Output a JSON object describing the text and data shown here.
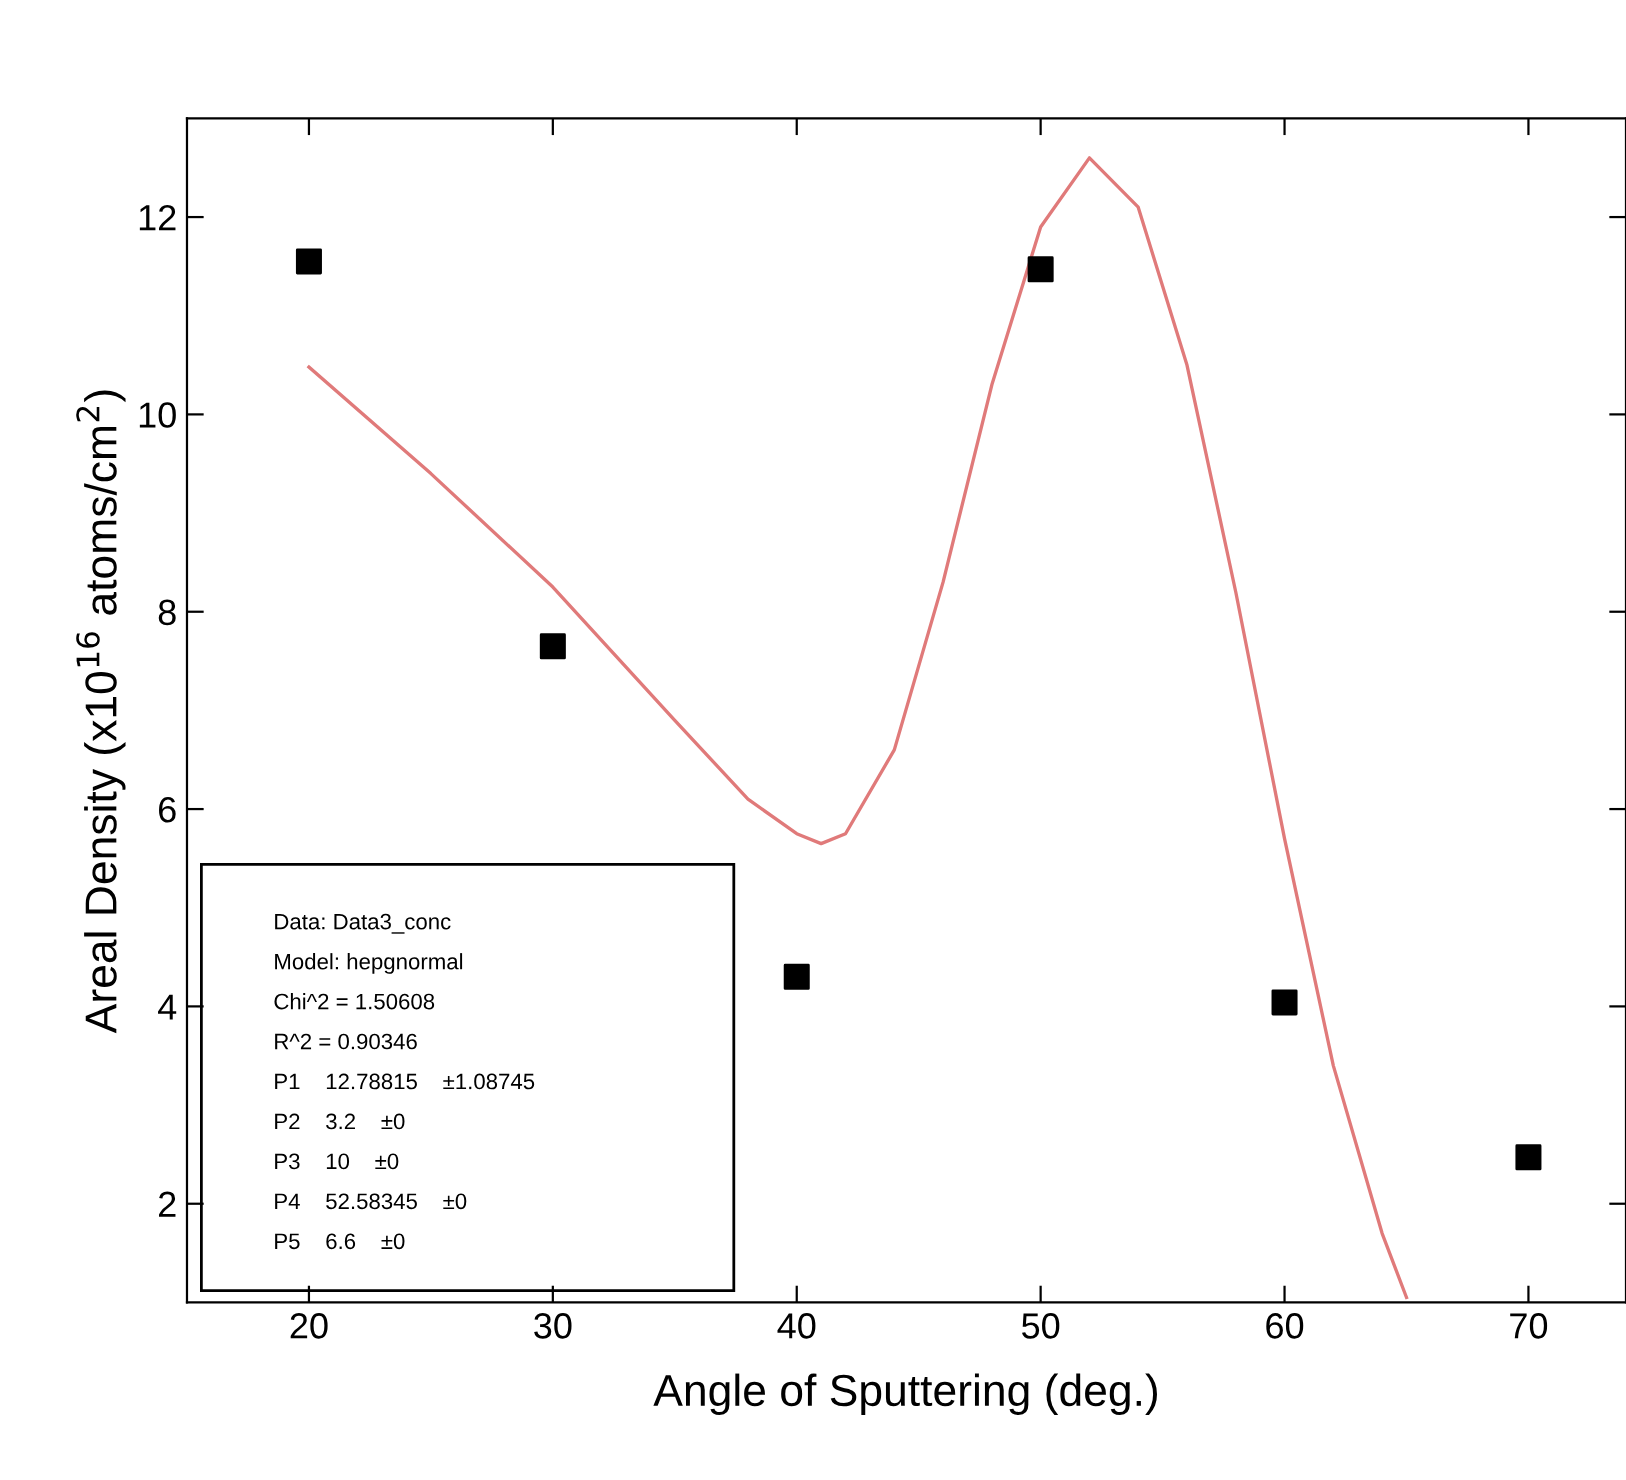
{
  "chart_data": {
    "type": "scatter",
    "xlabel": "Angle of Sputtering (deg.)",
    "ylabel": "Areal Density (x10$^{16}$ atoms/cm$^{2}$)",
    "xlim": [
      15,
      74
    ],
    "xticks": [
      20,
      30,
      40,
      50,
      60,
      70
    ],
    "ylim": [
      1,
      13
    ],
    "yticks": [
      2,
      4,
      6,
      8,
      10,
      12
    ],
    "grid": false,
    "legend": false,
    "marker": "square",
    "series": [
      {
        "color": "#000000",
        "x": [
          20,
          30,
          40,
          50,
          60,
          70
        ],
        "values": [
          11.55,
          7.65,
          4.3,
          11.47,
          4.04,
          2.47
        ]
      },
      {
        "type": "line",
        "color": "#e07a7a",
        "marker": "none",
        "line_style": "solid",
        "x": [
          20,
          25,
          30,
          35,
          38,
          40,
          41,
          42,
          44,
          46,
          48,
          50,
          52,
          54,
          56,
          58,
          60,
          62,
          64,
          65
        ],
        "values": [
          10.48,
          9.4,
          8.25,
          6.9,
          6.1,
          5.75,
          5.65,
          5.75,
          6.6,
          8.3,
          10.3,
          11.9,
          12.6,
          12.1,
          10.5,
          8.2,
          5.7,
          3.4,
          1.7,
          1.05
        ]
      }
    ],
    "annotations": [
      "Data: Data3_conc",
      "Model: hepgnormal",
      "Chi^2 = 1.50608",
      "R^2 = 0.90346",
      "P1    12.78815    ±1.08745",
      "P2    3.2    ±0",
      "P3    10    ±0",
      "P4    52.58345    ±0",
      "P5    6.6    ±0"
    ]
  }
}
